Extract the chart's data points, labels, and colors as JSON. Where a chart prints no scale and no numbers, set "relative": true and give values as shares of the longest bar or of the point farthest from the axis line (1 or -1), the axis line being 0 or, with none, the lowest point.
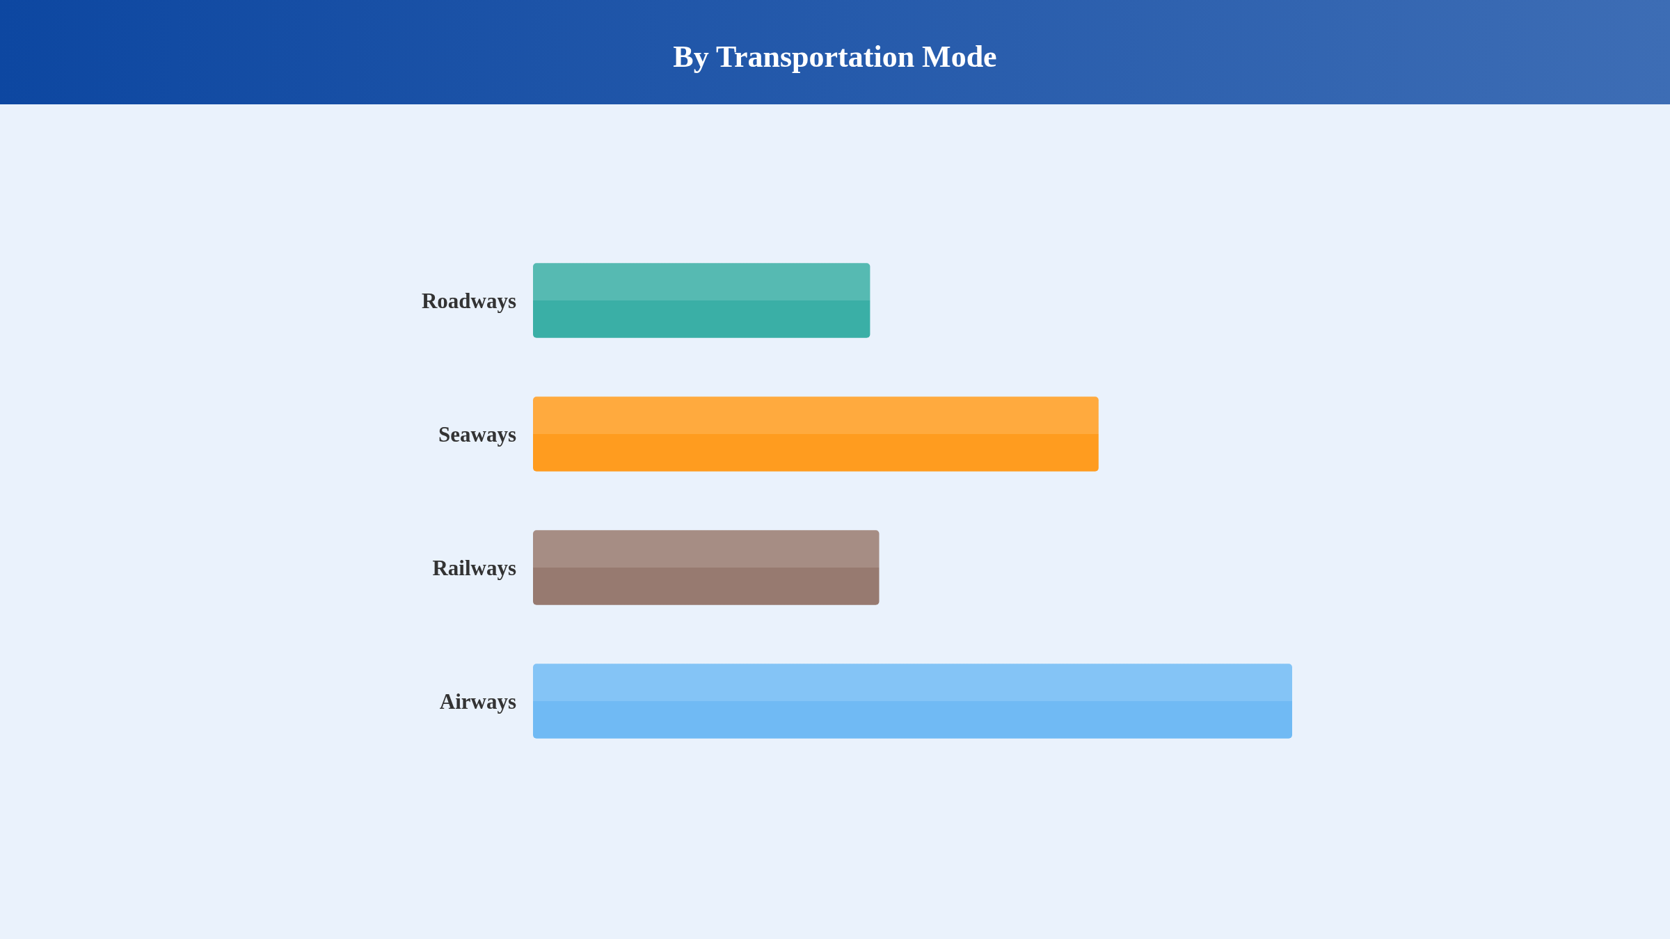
{
  "chart_data": {
    "type": "bar",
    "title": "By Transportation Mode",
    "orientation": "horizontal",
    "relative": true,
    "categories": [
      "Roadways",
      "Seaways",
      "Railways",
      "Airways"
    ],
    "values": [
      0.444,
      0.745,
      0.456,
      1
    ],
    "colors": [
      "#3aafa6",
      "#ff9c1f",
      "#977a70",
      "#70baf4"
    ]
  }
}
